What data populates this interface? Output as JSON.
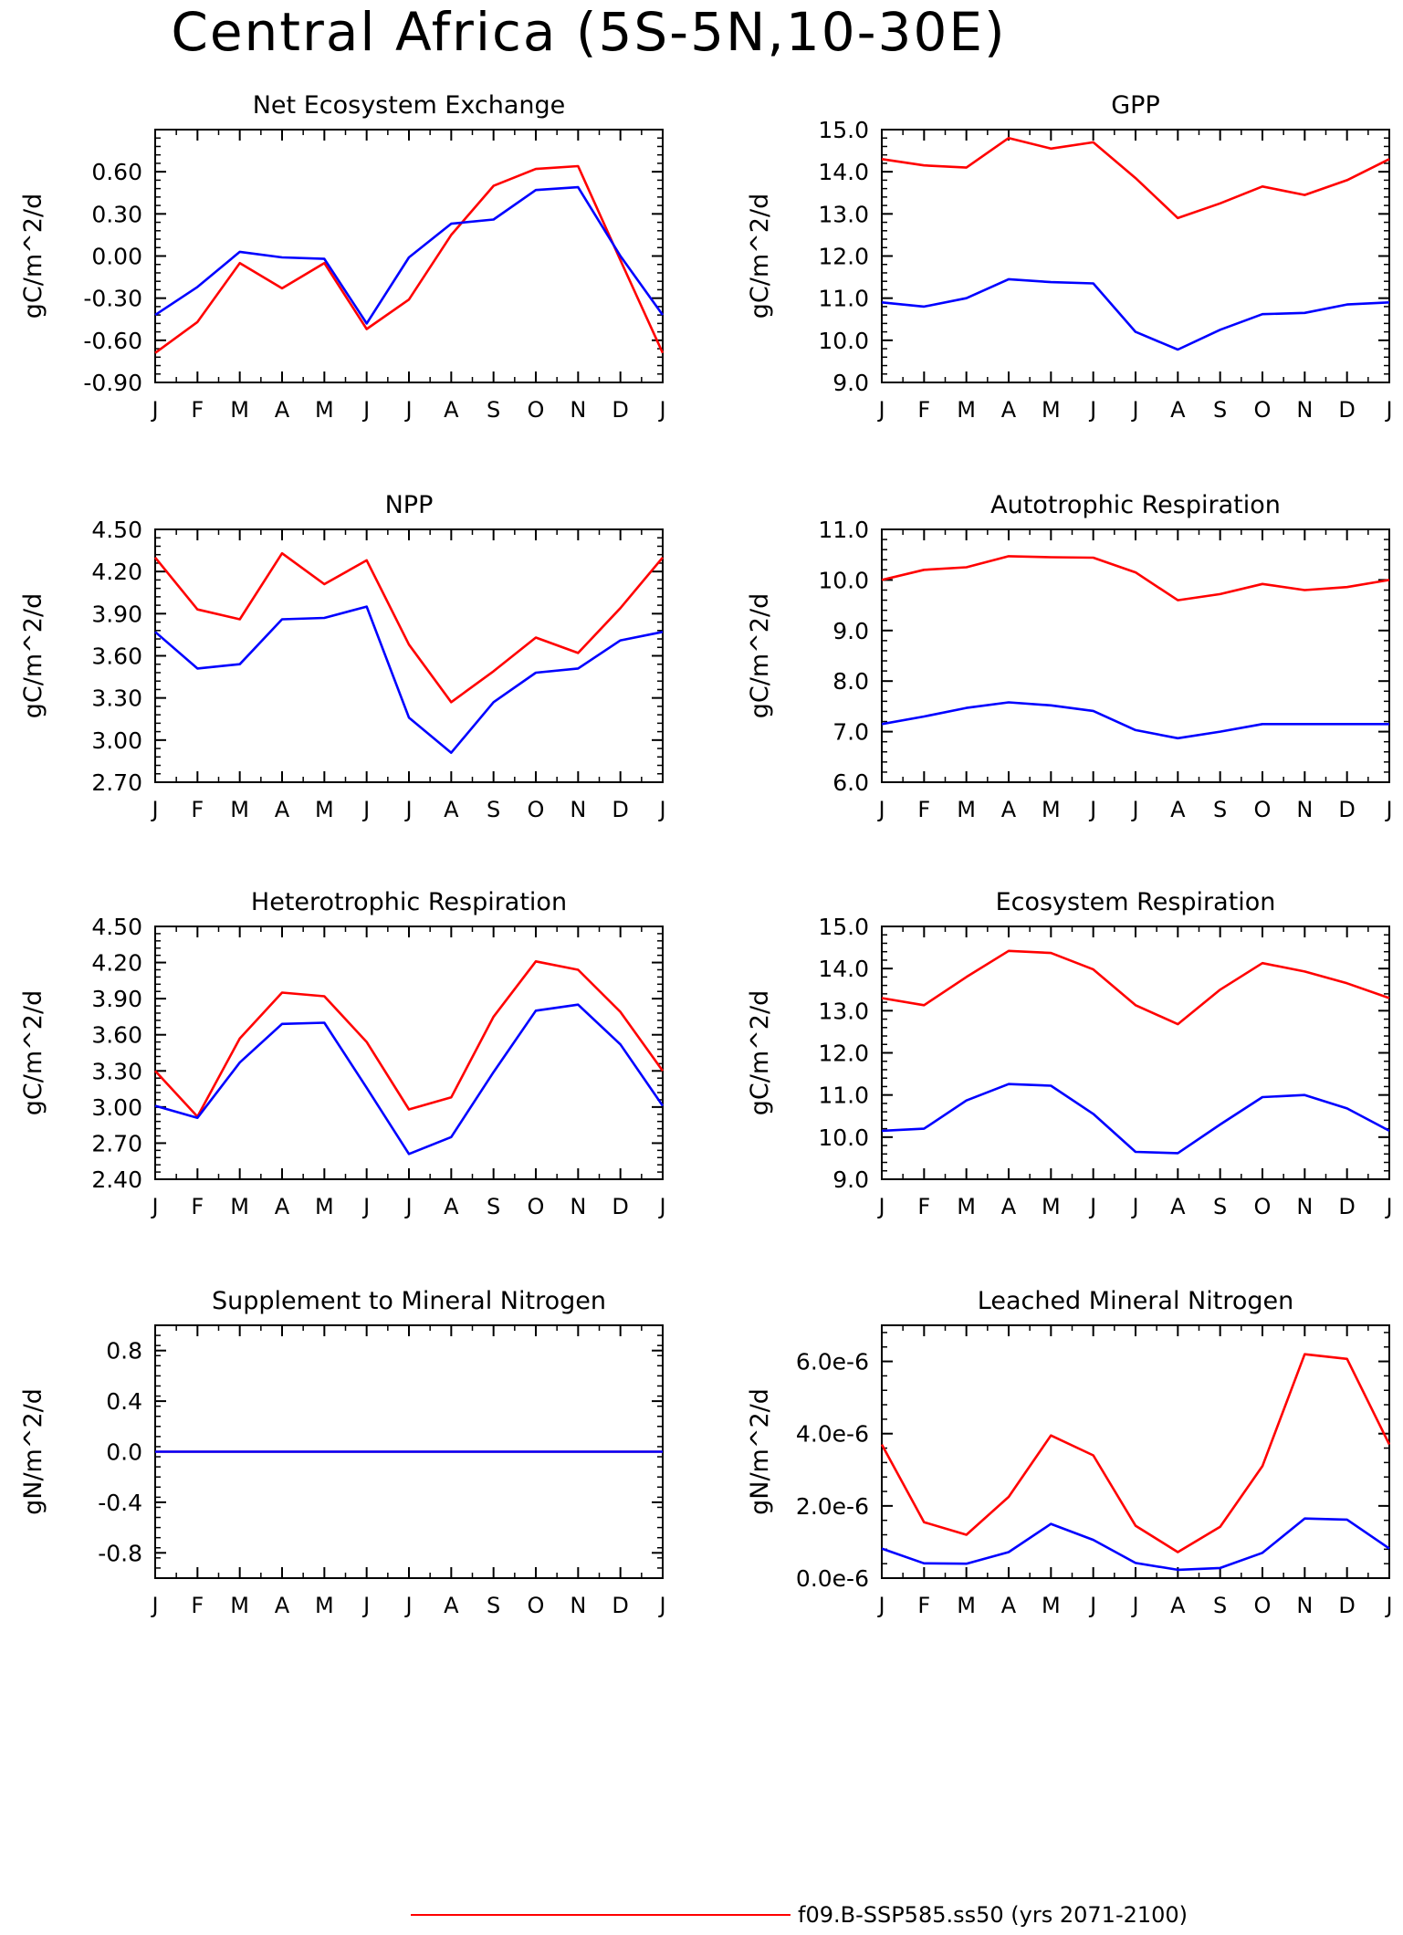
{
  "page": {
    "title": "Central Africa (5S-5N,10-30E)"
  },
  "legend": {
    "entries": [
      {
        "label": "f09.B-SSP585.ss50 (yrs 2071-2100)",
        "color": "#ff0000"
      }
    ]
  },
  "colors": {
    "case1": "#ff0000",
    "case2": "#0000ff"
  },
  "chart_data": [
    {
      "type": "line",
      "title": "Net Ecosystem Exchange",
      "ylabel": "gC/m^2/d",
      "categories": [
        "J",
        "F",
        "M",
        "A",
        "M",
        "J",
        "J",
        "A",
        "S",
        "O",
        "N",
        "D",
        "J"
      ],
      "ylim": [
        -0.9,
        0.9
      ],
      "yticks": [
        -0.9,
        -0.6,
        -0.3,
        0.0,
        0.3,
        0.6
      ],
      "ytick_labels": [
        "-0.90",
        "-0.60",
        "-0.30",
        "0.00",
        "0.30",
        "0.60"
      ],
      "series": [
        {
          "color": "#ff0000",
          "values": [
            -0.69,
            -0.47,
            -0.05,
            -0.23,
            -0.05,
            -0.52,
            -0.31,
            0.15,
            0.5,
            0.62,
            0.64,
            -0.03,
            -0.69
          ]
        },
        {
          "color": "#0000ff",
          "values": [
            -0.42,
            -0.22,
            0.03,
            -0.01,
            -0.02,
            -0.48,
            -0.01,
            0.23,
            0.26,
            0.47,
            0.49,
            0.0,
            -0.42
          ]
        }
      ]
    },
    {
      "type": "line",
      "title": "GPP",
      "ylabel": "gC/m^2/d",
      "categories": [
        "J",
        "F",
        "M",
        "A",
        "M",
        "J",
        "J",
        "A",
        "S",
        "O",
        "N",
        "D",
        "J"
      ],
      "ylim": [
        9.0,
        15.0
      ],
      "yticks": [
        9,
        10,
        11,
        12,
        13,
        14,
        15
      ],
      "ytick_labels": [
        "9.0",
        "10.0",
        "11.0",
        "12.0",
        "13.0",
        "14.0",
        "15.0"
      ],
      "series": [
        {
          "color": "#ff0000",
          "values": [
            14.3,
            14.15,
            14.1,
            14.8,
            14.55,
            14.7,
            13.85,
            12.9,
            13.25,
            13.65,
            13.45,
            13.8,
            14.3
          ]
        },
        {
          "color": "#0000ff",
          "values": [
            10.9,
            10.8,
            11.0,
            11.45,
            11.38,
            11.35,
            10.2,
            9.78,
            10.25,
            10.62,
            10.65,
            10.85,
            10.9
          ]
        }
      ]
    },
    {
      "type": "line",
      "title": "NPP",
      "ylabel": "gC/m^2/d",
      "categories": [
        "J",
        "F",
        "M",
        "A",
        "M",
        "J",
        "J",
        "A",
        "S",
        "O",
        "N",
        "D",
        "J"
      ],
      "ylim": [
        2.7,
        4.5
      ],
      "yticks": [
        2.7,
        3.0,
        3.3,
        3.6,
        3.9,
        4.2,
        4.5
      ],
      "ytick_labels": [
        "2.70",
        "3.00",
        "3.30",
        "3.60",
        "3.90",
        "4.20",
        "4.50"
      ],
      "series": [
        {
          "color": "#ff0000",
          "values": [
            4.3,
            3.93,
            3.86,
            4.33,
            4.11,
            4.28,
            3.68,
            3.27,
            3.49,
            3.73,
            3.62,
            3.94,
            4.3
          ]
        },
        {
          "color": "#0000ff",
          "values": [
            3.77,
            3.51,
            3.54,
            3.86,
            3.87,
            3.95,
            3.16,
            2.91,
            3.27,
            3.48,
            3.51,
            3.71,
            3.77
          ]
        }
      ]
    },
    {
      "type": "line",
      "title": "Autotrophic Respiration",
      "ylabel": "gC/m^2/d",
      "categories": [
        "J",
        "F",
        "M",
        "A",
        "M",
        "J",
        "J",
        "A",
        "S",
        "O",
        "N",
        "D",
        "J"
      ],
      "ylim": [
        6.0,
        11.0
      ],
      "yticks": [
        6,
        7,
        8,
        9,
        10,
        11
      ],
      "ytick_labels": [
        "6.0",
        "7.0",
        "8.0",
        "9.0",
        "10.0",
        "11.0"
      ],
      "series": [
        {
          "color": "#ff0000",
          "values": [
            10.0,
            10.2,
            10.25,
            10.47,
            10.45,
            10.44,
            10.15,
            9.6,
            9.72,
            9.92,
            9.8,
            9.86,
            10.0
          ]
        },
        {
          "color": "#0000ff",
          "values": [
            7.15,
            7.3,
            7.47,
            7.58,
            7.52,
            7.41,
            7.03,
            6.87,
            7.0,
            7.15,
            7.15,
            7.15,
            7.15
          ]
        }
      ]
    },
    {
      "type": "line",
      "title": "Heterotrophic Respiration",
      "ylabel": "gC/m^2/d",
      "categories": [
        "J",
        "F",
        "M",
        "A",
        "M",
        "J",
        "J",
        "A",
        "S",
        "O",
        "N",
        "D",
        "J"
      ],
      "ylim": [
        2.4,
        4.5
      ],
      "yticks": [
        2.4,
        2.7,
        3.0,
        3.3,
        3.6,
        3.9,
        4.2,
        4.5
      ],
      "ytick_labels": [
        "2.40",
        "2.70",
        "3.00",
        "3.30",
        "3.60",
        "3.90",
        "4.20",
        "4.50"
      ],
      "series": [
        {
          "color": "#ff0000",
          "values": [
            3.3,
            2.92,
            3.57,
            3.95,
            3.92,
            3.54,
            2.98,
            3.08,
            3.75,
            4.21,
            4.14,
            3.79,
            3.3
          ]
        },
        {
          "color": "#0000ff",
          "values": [
            3.01,
            2.91,
            3.37,
            3.69,
            3.7,
            3.16,
            2.61,
            2.75,
            3.29,
            3.8,
            3.85,
            3.52,
            3.01
          ]
        }
      ]
    },
    {
      "type": "line",
      "title": "Ecosystem Respiration",
      "ylabel": "gC/m^2/d",
      "categories": [
        "J",
        "F",
        "M",
        "A",
        "M",
        "J",
        "J",
        "A",
        "S",
        "O",
        "N",
        "D",
        "J"
      ],
      "ylim": [
        9.0,
        15.0
      ],
      "yticks": [
        9,
        10,
        11,
        12,
        13,
        14,
        15
      ],
      "ytick_labels": [
        "9.0",
        "10.0",
        "11.0",
        "12.0",
        "13.0",
        "14.0",
        "15.0"
      ],
      "series": [
        {
          "color": "#ff0000",
          "values": [
            13.3,
            13.13,
            13.8,
            14.42,
            14.37,
            13.98,
            13.13,
            12.68,
            13.5,
            14.13,
            13.93,
            13.65,
            13.3
          ]
        },
        {
          "color": "#0000ff",
          "values": [
            10.15,
            10.2,
            10.87,
            11.26,
            11.22,
            10.55,
            9.65,
            9.62,
            10.3,
            10.95,
            11.0,
            10.68,
            10.15
          ]
        }
      ]
    },
    {
      "type": "line",
      "title": "Supplement to Mineral Nitrogen",
      "ylabel": "gN/m^2/d",
      "categories": [
        "J",
        "F",
        "M",
        "A",
        "M",
        "J",
        "J",
        "A",
        "S",
        "O",
        "N",
        "D",
        "J"
      ],
      "ylim": [
        -1.0,
        1.0
      ],
      "yticks": [
        -0.8,
        -0.4,
        0.0,
        0.4,
        0.8
      ],
      "ytick_labels": [
        "-0.8",
        "-0.4",
        "0.0",
        "0.4",
        "0.8"
      ],
      "series": [
        {
          "color": "#ff0000",
          "values": [
            0,
            0,
            0,
            0,
            0,
            0,
            0,
            0,
            0,
            0,
            0,
            0,
            0
          ]
        },
        {
          "color": "#0000ff",
          "values": [
            0,
            0,
            0,
            0,
            0,
            0,
            0,
            0,
            0,
            0,
            0,
            0,
            0
          ]
        }
      ]
    },
    {
      "type": "line",
      "title": "Leached Mineral Nitrogen",
      "ylabel": "gN/m^2/d",
      "categories": [
        "J",
        "F",
        "M",
        "A",
        "M",
        "J",
        "J",
        "A",
        "S",
        "O",
        "N",
        "D",
        "J"
      ],
      "ylim": [
        0.0,
        7e-06
      ],
      "yticks": [
        0,
        2e-06,
        4e-06,
        6e-06
      ],
      "ytick_labels": [
        "0.0e-6",
        "2.0e-6",
        "4.0e-6",
        "6.0e-6"
      ],
      "series": [
        {
          "color": "#ff0000",
          "values": [
            3.7e-06,
            1.55e-06,
            1.2e-06,
            2.25e-06,
            3.95e-06,
            3.4e-06,
            1.45e-06,
            7.2e-07,
            1.42e-06,
            3.1e-06,
            6.2e-06,
            6.07e-06,
            3.7e-06
          ]
        },
        {
          "color": "#0000ff",
          "values": [
            8.2e-07,
            4.1e-07,
            4e-07,
            7.2e-07,
            1.5e-06,
            1.06e-06,
            4.2e-07,
            2.3e-07,
            2.8e-07,
            7e-07,
            1.65e-06,
            1.62e-06,
            8.2e-07
          ]
        }
      ]
    }
  ]
}
